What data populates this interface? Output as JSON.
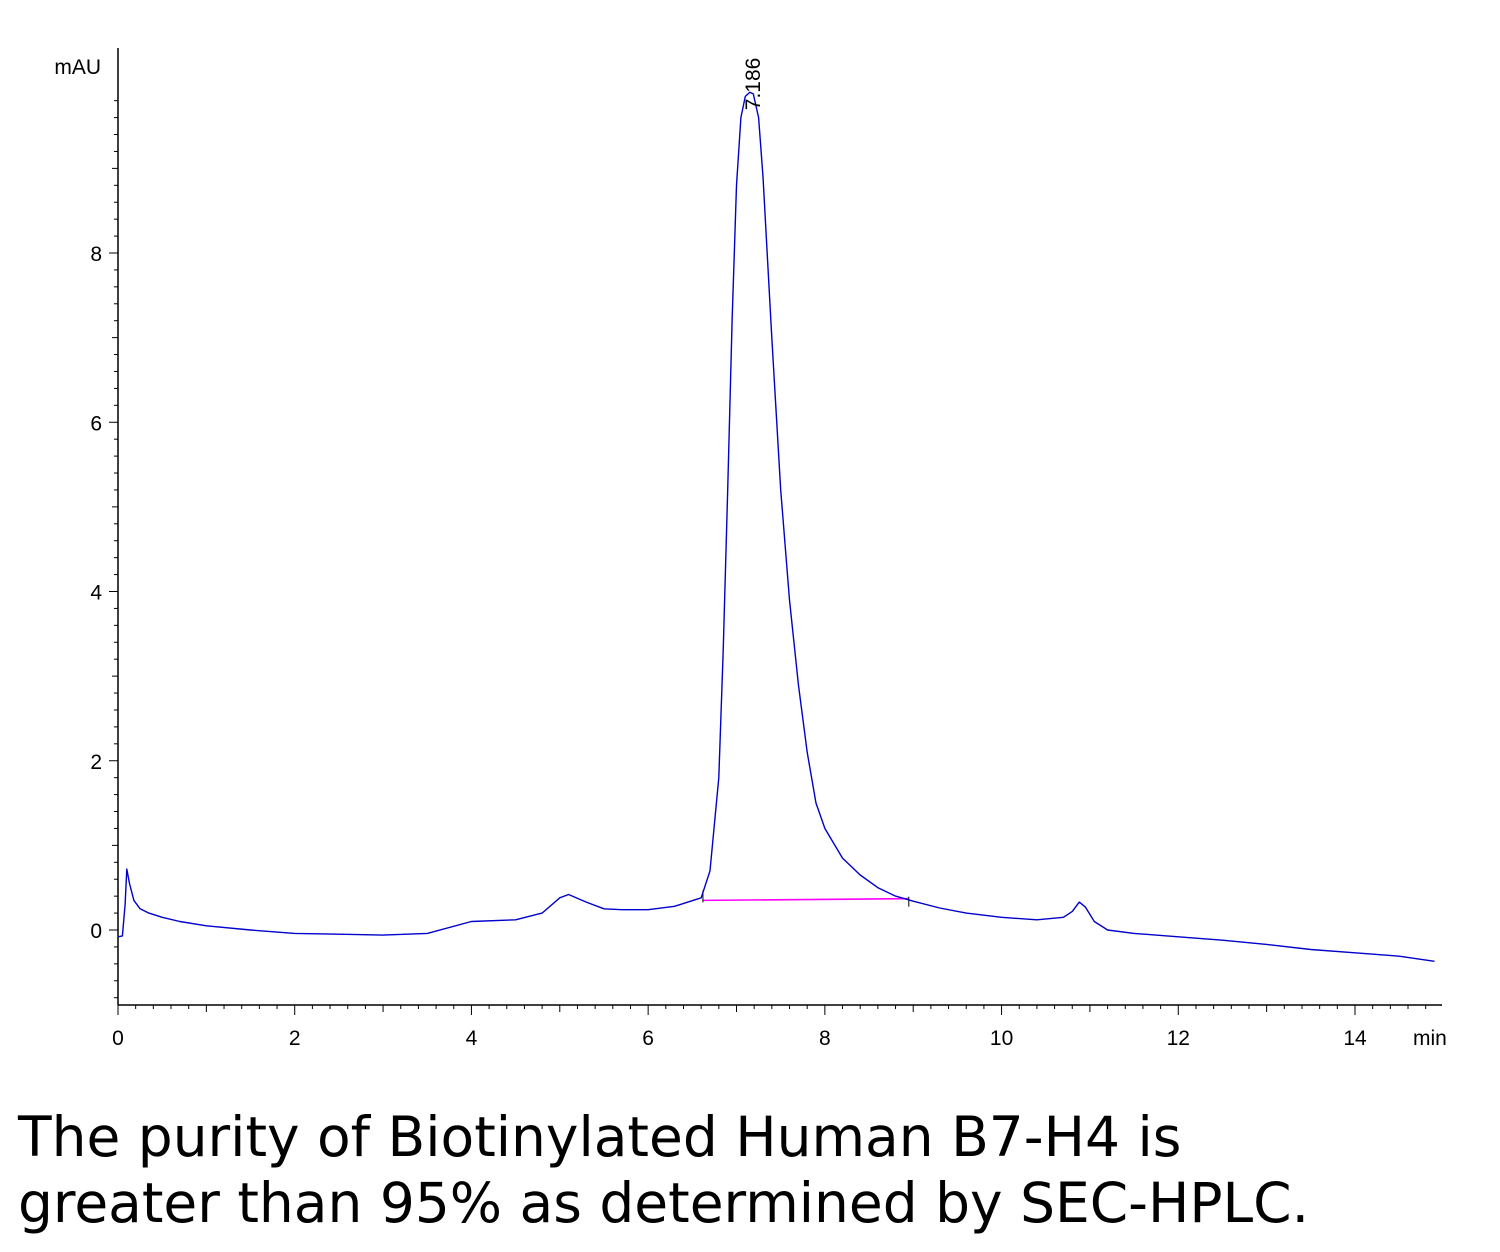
{
  "chart_data": {
    "type": "line",
    "ylabel": "mAU",
    "xlabel": "min",
    "xlim": [
      0,
      14.9
    ],
    "ylim": [
      -0.88,
      10.0
    ],
    "x_ticks": [
      "0",
      "2",
      "4",
      "6",
      "8",
      "10",
      "12",
      "14"
    ],
    "y_ticks": [
      "0",
      "2",
      "4",
      "6",
      "8"
    ],
    "grid": false,
    "series": [
      {
        "color": "#0000cc",
        "x": [
          0.0,
          0.05,
          0.08,
          0.1,
          0.13,
          0.18,
          0.25,
          0.35,
          0.5,
          0.7,
          1.0,
          1.5,
          2.0,
          2.5,
          3.0,
          3.5,
          4.0,
          4.5,
          4.8,
          5.0,
          5.1,
          5.3,
          5.5,
          5.7,
          6.0,
          6.3,
          6.6,
          6.7,
          6.8,
          6.85,
          6.9,
          6.95,
          7.0,
          7.05,
          7.1,
          7.15,
          7.19,
          7.25,
          7.3,
          7.4,
          7.5,
          7.6,
          7.7,
          7.8,
          7.9,
          8.0,
          8.2,
          8.4,
          8.6,
          8.8,
          9.0,
          9.3,
          9.6,
          10.0,
          10.4,
          10.7,
          10.8,
          10.88,
          10.95,
          11.05,
          11.2,
          11.5,
          12.0,
          12.5,
          13.0,
          13.5,
          14.0,
          14.5,
          14.9
        ],
        "y": [
          -0.08,
          -0.07,
          0.3,
          0.72,
          0.55,
          0.35,
          0.25,
          0.2,
          0.15,
          0.1,
          0.05,
          0.0,
          -0.04,
          -0.05,
          -0.06,
          -0.04,
          0.1,
          0.12,
          0.2,
          0.38,
          0.42,
          0.33,
          0.25,
          0.24,
          0.24,
          0.28,
          0.38,
          0.7,
          1.8,
          3.3,
          5.2,
          7.2,
          8.8,
          9.6,
          9.85,
          9.9,
          9.88,
          9.6,
          8.9,
          7.0,
          5.2,
          3.9,
          2.9,
          2.1,
          1.5,
          1.2,
          0.85,
          0.65,
          0.5,
          0.4,
          0.34,
          0.26,
          0.2,
          0.15,
          0.12,
          0.15,
          0.22,
          0.33,
          0.27,
          0.1,
          0.0,
          -0.04,
          -0.08,
          -0.12,
          -0.17,
          -0.23,
          -0.27,
          -0.31,
          -0.37
        ]
      }
    ],
    "baseline": {
      "color": "#ff00ff",
      "x": [
        6.62,
        8.95
      ],
      "y": [
        0.35,
        0.37
      ]
    },
    "annotations": [
      {
        "text": "7.186",
        "x": 7.186,
        "y": 9.9
      }
    ]
  },
  "caption": {
    "line1": "The purity of Biotinylated Human B7-H4 is",
    "line2": "greater than 95% as determined by SEC-HPLC."
  }
}
